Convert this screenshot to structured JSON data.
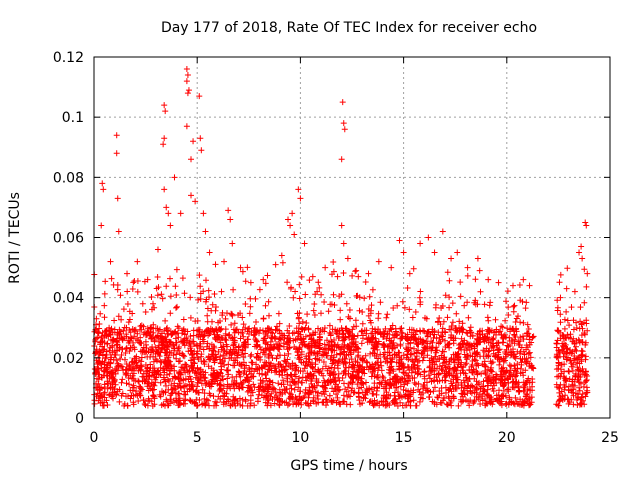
{
  "chart_data": {
    "type": "scatter",
    "title": "Day 177 of 2018, Rate Of TEC Index for receiver echo",
    "xlabel": "GPS time / hours",
    "ylabel": "ROTI / TECUs",
    "xlim": [
      0,
      25
    ],
    "ylim": [
      0,
      0.12
    ],
    "xticks": [
      "0",
      "5",
      "10",
      "15",
      "20",
      "25"
    ],
    "yticks": [
      "0",
      "0.02",
      "0.04",
      "0.06",
      "0.08",
      "0.1",
      "0.12"
    ],
    "grid": true,
    "legend": "none",
    "marker": "+",
    "color": "#ff0000",
    "coverage_hours": [
      [
        0,
        21.3
      ],
      [
        22.4,
        23.9
      ]
    ],
    "series": [
      {
        "points": [
          [
            0.4,
            0.078
          ],
          [
            0.45,
            0.076
          ],
          [
            0.35,
            0.064
          ],
          [
            0.8,
            0.052
          ],
          [
            1.1,
            0.094
          ],
          [
            1.1,
            0.088
          ],
          [
            1.15,
            0.073
          ],
          [
            1.2,
            0.062
          ],
          [
            1.6,
            0.048
          ],
          [
            2.1,
            0.052
          ],
          [
            2.6,
            0.046
          ],
          [
            3.1,
            0.056
          ],
          [
            3.4,
            0.104
          ],
          [
            3.45,
            0.102
          ],
          [
            3.4,
            0.093
          ],
          [
            3.35,
            0.091
          ],
          [
            3.4,
            0.076
          ],
          [
            3.5,
            0.07
          ],
          [
            3.6,
            0.068
          ],
          [
            3.7,
            0.064
          ],
          [
            3.9,
            0.08
          ],
          [
            4.2,
            0.068
          ],
          [
            4.5,
            0.116
          ],
          [
            4.55,
            0.114
          ],
          [
            4.5,
            0.112
          ],
          [
            4.6,
            0.109
          ],
          [
            4.55,
            0.108
          ],
          [
            4.5,
            0.097
          ],
          [
            4.8,
            0.092
          ],
          [
            4.7,
            0.086
          ],
          [
            4.7,
            0.074
          ],
          [
            4.9,
            0.072
          ],
          [
            5.1,
            0.107
          ],
          [
            5.15,
            0.093
          ],
          [
            5.2,
            0.089
          ],
          [
            5.3,
            0.068
          ],
          [
            5.4,
            0.062
          ],
          [
            5.6,
            0.055
          ],
          [
            6.3,
            0.052
          ],
          [
            6.5,
            0.069
          ],
          [
            6.6,
            0.066
          ],
          [
            6.7,
            0.058
          ],
          [
            7.1,
            0.05
          ],
          [
            7.6,
            0.045
          ],
          [
            8.2,
            0.046
          ],
          [
            8.8,
            0.051
          ],
          [
            9.1,
            0.054
          ],
          [
            9.4,
            0.066
          ],
          [
            9.5,
            0.064
          ],
          [
            9.6,
            0.068
          ],
          [
            9.7,
            0.061
          ],
          [
            9.9,
            0.076
          ],
          [
            10.0,
            0.073
          ],
          [
            10.2,
            0.058
          ],
          [
            10.6,
            0.047
          ],
          [
            11.2,
            0.05
          ],
          [
            11.8,
            0.047
          ],
          [
            12.05,
            0.105
          ],
          [
            12.1,
            0.098
          ],
          [
            12.15,
            0.096
          ],
          [
            12.0,
            0.086
          ],
          [
            12.0,
            0.064
          ],
          [
            12.1,
            0.058
          ],
          [
            12.3,
            0.053
          ],
          [
            12.7,
            0.049
          ],
          [
            13.3,
            0.048
          ],
          [
            13.8,
            0.052
          ],
          [
            14.4,
            0.05
          ],
          [
            14.8,
            0.059
          ],
          [
            15.0,
            0.055
          ],
          [
            15.3,
            0.048
          ],
          [
            15.8,
            0.058
          ],
          [
            16.2,
            0.06
          ],
          [
            16.5,
            0.055
          ],
          [
            16.9,
            0.062
          ],
          [
            17.3,
            0.053
          ],
          [
            17.6,
            0.055
          ],
          [
            18.1,
            0.05
          ],
          [
            18.6,
            0.053
          ],
          [
            19.1,
            0.046
          ],
          [
            19.6,
            0.045
          ],
          [
            20.3,
            0.044
          ],
          [
            20.8,
            0.046
          ],
          [
            21.1,
            0.044
          ],
          [
            22.6,
            0.04
          ],
          [
            22.9,
            0.043
          ],
          [
            23.3,
            0.042
          ],
          [
            23.5,
            0.055
          ],
          [
            23.6,
            0.057
          ],
          [
            23.65,
            0.053
          ],
          [
            23.8,
            0.065
          ],
          [
            23.85,
            0.064
          ],
          [
            23.9,
            0.048
          ]
        ]
      }
    ]
  }
}
